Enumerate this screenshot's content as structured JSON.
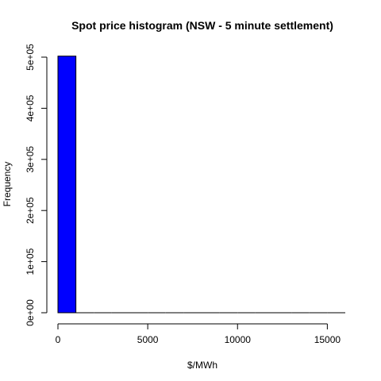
{
  "colors": {
    "background": "#ffffff",
    "bar_fill": "#0000ff",
    "bar_stroke": "#000000",
    "axis": "#000000",
    "text": "#000000"
  },
  "chart_data": {
    "type": "bar",
    "title": "Spot price histogram (NSW - 5 minute settlement)",
    "xlabel": "$/MWh",
    "ylabel": "Frequency",
    "grid": false,
    "legend": "none",
    "bins": [
      {
        "start": 0,
        "end": 1000,
        "count": 502000
      },
      {
        "start": 1000,
        "end": 2000,
        "count": 0
      },
      {
        "start": 2000,
        "end": 3000,
        "count": 0
      },
      {
        "start": 3000,
        "end": 4000,
        "count": 0
      },
      {
        "start": 4000,
        "end": 5000,
        "count": 0
      },
      {
        "start": 5000,
        "end": 6000,
        "count": 0
      },
      {
        "start": 6000,
        "end": 7000,
        "count": 0
      },
      {
        "start": 7000,
        "end": 8000,
        "count": 0
      },
      {
        "start": 8000,
        "end": 9000,
        "count": 0
      },
      {
        "start": 9000,
        "end": 10000,
        "count": 0
      },
      {
        "start": 10000,
        "end": 11000,
        "count": 0
      },
      {
        "start": 11000,
        "end": 12000,
        "count": 0
      },
      {
        "start": 12000,
        "end": 13000,
        "count": 0
      },
      {
        "start": 13000,
        "end": 14000,
        "count": 0
      },
      {
        "start": 14000,
        "end": 15000,
        "count": 0
      },
      {
        "start": 15000,
        "end": 16000,
        "count": 0
      }
    ],
    "xlim": [
      0,
      16000
    ],
    "ylim": [
      0,
      500000
    ],
    "x_ticks": [
      0,
      5000,
      10000,
      15000
    ],
    "x_tick_labels": [
      "0",
      "5000",
      "10000",
      "15000"
    ],
    "y_ticks": [
      0,
      100000,
      200000,
      300000,
      400000,
      500000
    ],
    "y_tick_labels": [
      "0e+00",
      "1e+05",
      "2e+05",
      "3e+05",
      "4e+05",
      "5e+05"
    ]
  }
}
